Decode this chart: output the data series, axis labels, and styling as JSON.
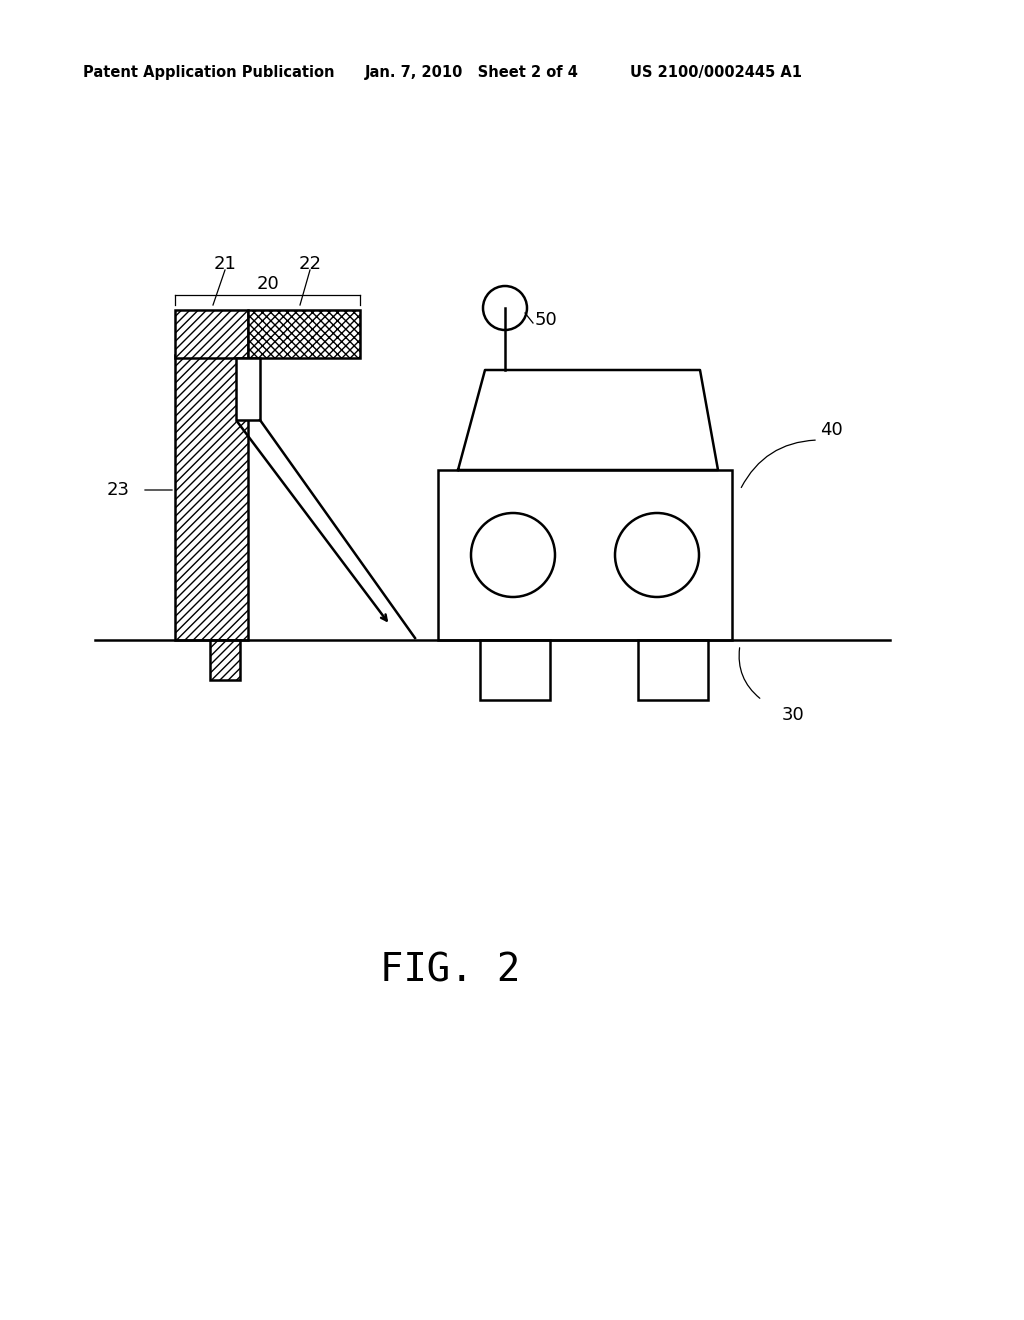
{
  "bg_color": "#ffffff",
  "line_color": "#000000",
  "header_left": "Patent Application Publication",
  "header_mid": "Jan. 7, 2010   Sheet 2 of 4",
  "header_right": "US 2100/0002445 A1",
  "fig_label": "FIG. 2",
  "header_fontsize": 10.5,
  "fig_label_fontsize": 28,
  "label_fontsize": 13
}
